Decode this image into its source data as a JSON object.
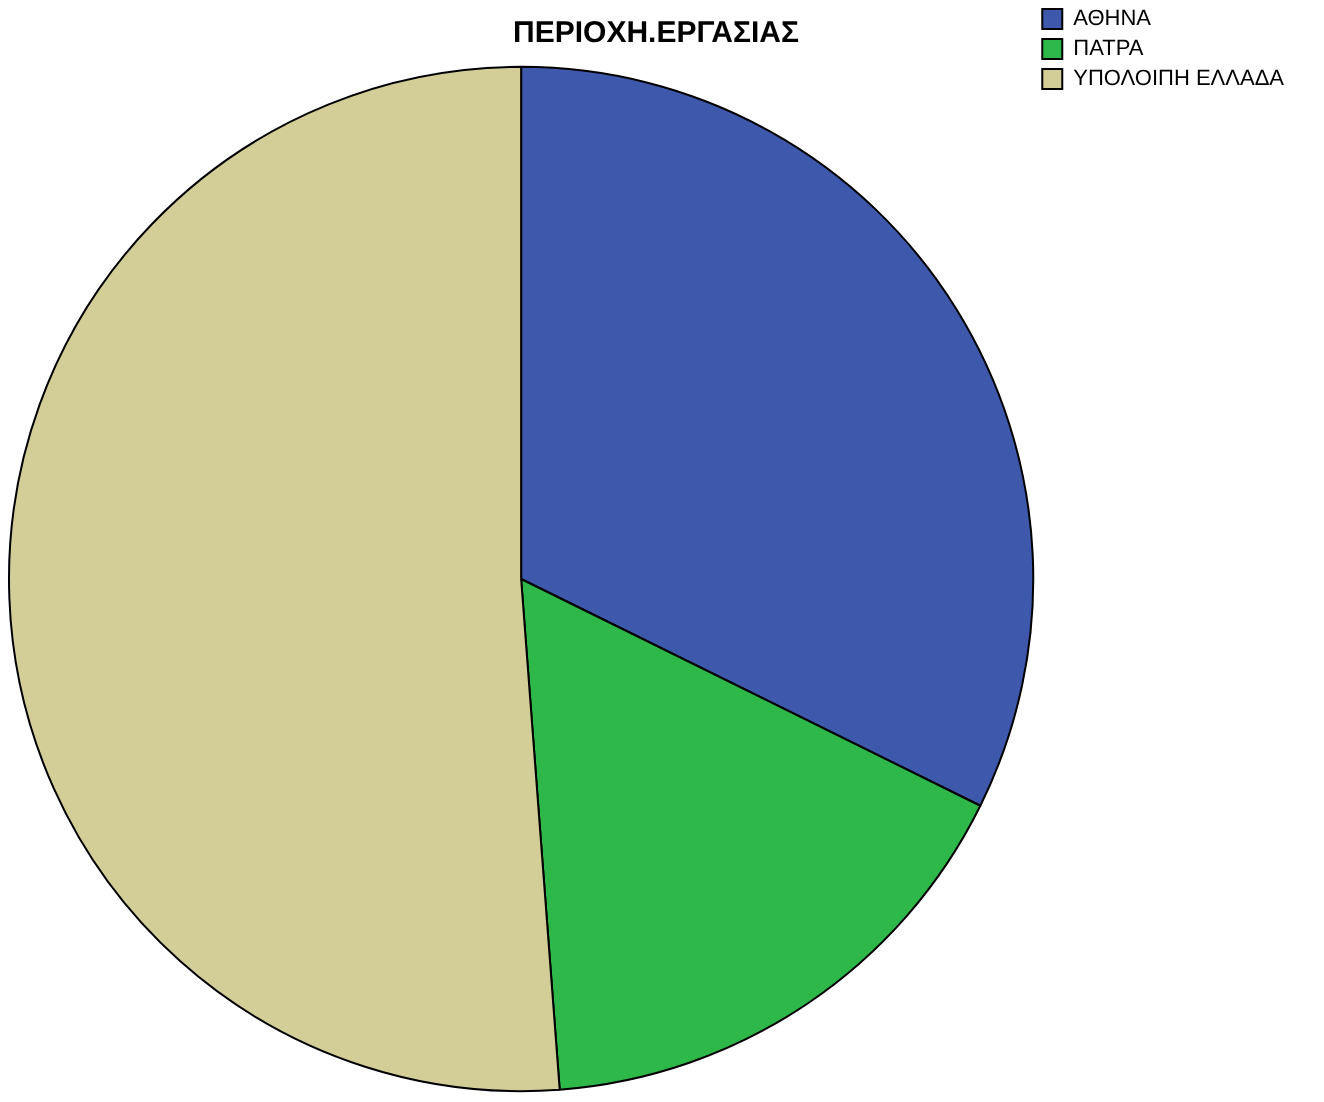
{
  "chart_data": {
    "type": "pie",
    "title": "ΠΕΡΙΟΧΗ.ΕΡΓΑΣΙΑΣ",
    "categories": [
      "ΑΘΗΝΑ",
      "ΠΑΤΡΑ",
      "ΥΠΟΛΟΙΠΗ ΕΛΛΑΔΑ"
    ],
    "values": [
      32.3,
      16.5,
      51.2
    ],
    "colors": [
      "#3e58ac",
      "#2eb84a",
      "#d3ce98"
    ],
    "legend": "top right"
  }
}
